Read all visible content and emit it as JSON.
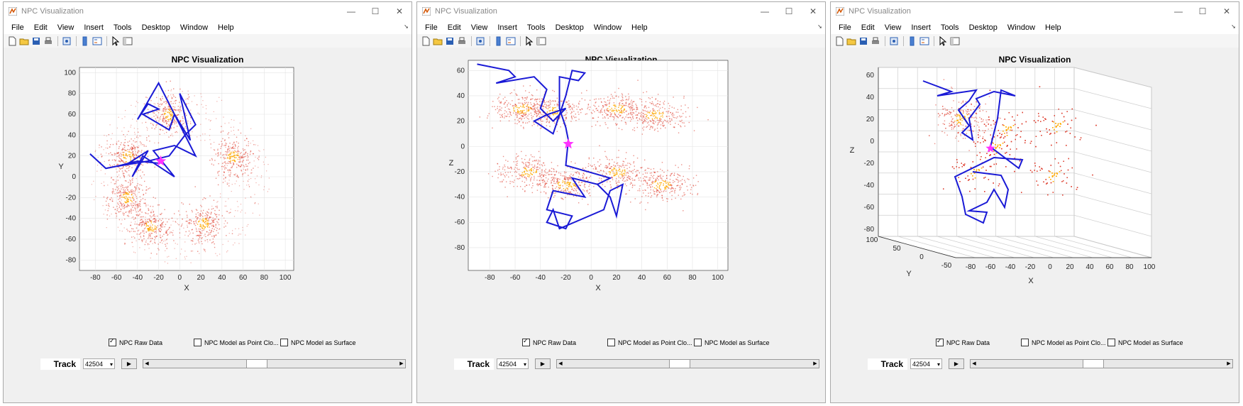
{
  "windows": [
    {
      "title": "NPC Visualization",
      "menu": [
        "File",
        "Edit",
        "View",
        "Insert",
        "Tools",
        "Desktop",
        "Window",
        "Help"
      ],
      "plot_title": "NPC Visualization",
      "view": "xy",
      "xlabel": "X",
      "ylabel": "Y",
      "xticks": [
        "-80",
        "-60",
        "-40",
        "-20",
        "0",
        "20",
        "40",
        "60",
        "80",
        "100"
      ],
      "yticks": [
        "100",
        "80",
        "60",
        "40",
        "20",
        "0",
        "-20",
        "-40",
        "-60",
        "-80"
      ],
      "checkboxes": [
        {
          "label": "NPC Raw Data",
          "checked": true
        },
        {
          "label": "NPC Model as Point Clo...",
          "checked": false
        },
        {
          "label": "NPC Model as Surface",
          "checked": false
        }
      ],
      "track_label": "Track",
      "track_value": "42504",
      "slider_value": 0.42
    },
    {
      "title": "NPC Visualization",
      "menu": [
        "File",
        "Edit",
        "View",
        "Insert",
        "Tools",
        "Desktop",
        "Window",
        "Help"
      ],
      "plot_title": "NPC Visualization",
      "view": "xz",
      "xlabel": "X",
      "ylabel": "Z",
      "xticks": [
        "-80",
        "-60",
        "-40",
        "-20",
        "0",
        "20",
        "40",
        "60",
        "80",
        "100"
      ],
      "yticks": [
        "60",
        "40",
        "20",
        "0",
        "-20",
        "-40",
        "-60",
        "-80"
      ],
      "checkboxes": [
        {
          "label": "NPC Raw Data",
          "checked": true
        },
        {
          "label": "NPC Model as Point Clo...",
          "checked": false
        },
        {
          "label": "NPC Model as Surface",
          "checked": false
        }
      ],
      "track_label": "Track",
      "track_value": "42504",
      "slider_value": 0.46
    },
    {
      "title": "NPC Visualization",
      "menu": [
        "File",
        "Edit",
        "View",
        "Insert",
        "Tools",
        "Desktop",
        "Window",
        "Help"
      ],
      "plot_title": "NPC Visualization",
      "view": "3d",
      "xlabel": "X",
      "ylabel": "Y",
      "zlabel": "Z",
      "xticks": [
        "-80",
        "-60",
        "-40",
        "-20",
        "0",
        "20",
        "40",
        "60",
        "80",
        "100"
      ],
      "yticks": [
        "100",
        "50",
        "0",
        "-50"
      ],
      "zticks": [
        "60",
        "40",
        "20",
        "0",
        "-20",
        "-40",
        "-60",
        "-80"
      ],
      "checkboxes": [
        {
          "label": "NPC Raw Data",
          "checked": true
        },
        {
          "label": "NPC Model as Point Clo...",
          "checked": false
        },
        {
          "label": "NPC Model as Surface",
          "checked": false
        }
      ],
      "track_label": "Track",
      "track_value": "42504",
      "slider_value": 0.46
    }
  ],
  "colors": {
    "track": "#1a1ad6",
    "star": "#ff33ff",
    "points": "#dd3322",
    "hot": "#ffaa00"
  }
}
